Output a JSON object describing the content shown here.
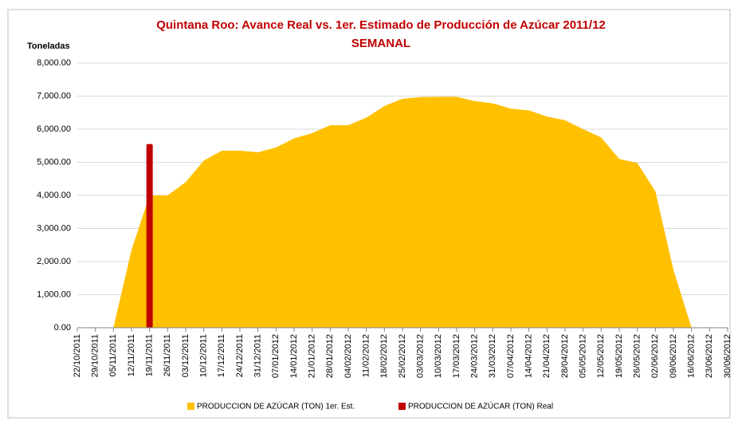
{
  "chart_data": {
    "type": "area-bar",
    "title": "Quintana Roo: Avance Real vs. 1er. Estimado de Producción de Azúcar 2011/12",
    "subtitle": "SEMANAL",
    "y_label": "Toneladas",
    "categories": [
      "22/10/2011",
      "29/10/2011",
      "05/11/2011",
      "12/11/2011",
      "19/11/2011",
      "26/11/2011",
      "03/12/2011",
      "10/12/2011",
      "17/12/2011",
      "24/12/2011",
      "31/12/2011",
      "07/01/2012",
      "14/01/2012",
      "21/01/2012",
      "28/01/2012",
      "04/02/2012",
      "11/02/2012",
      "18/02/2012",
      "25/02/2012",
      "03/03/2012",
      "10/03/2012",
      "17/03/2012",
      "24/03/2012",
      "31/03/2012",
      "07/04/2012",
      "14/04/2012",
      "21/04/2012",
      "28/04/2012",
      "05/05/2012",
      "12/05/2012",
      "19/05/2012",
      "26/05/2012",
      "02/06/2012",
      "09/06/2012",
      "16/06/2012",
      "23/06/2012",
      "30/06/2012"
    ],
    "series": [
      {
        "name": "PRODUCCION DE AZÚCAR (TON) 1er. Est.",
        "color": "#ffc000",
        "kind": "area",
        "values": [
          null,
          null,
          0,
          2350,
          4000,
          4000,
          4400,
          5050,
          5350,
          5350,
          5300,
          5450,
          5720,
          5880,
          6120,
          6120,
          6350,
          6700,
          6920,
          6970,
          6980,
          6980,
          6850,
          6780,
          6620,
          6570,
          6380,
          6270,
          6000,
          5750,
          5100,
          4980,
          4120,
          1750,
          0,
          null,
          null
        ]
      },
      {
        "name": "PRODUCCION DE AZÚCAR (TON) Real",
        "color": "#c00000",
        "kind": "bar",
        "values": [
          null,
          null,
          null,
          null,
          5550,
          null,
          null,
          null,
          null,
          null,
          null,
          null,
          null,
          null,
          null,
          null,
          null,
          null,
          null,
          null,
          null,
          null,
          null,
          null,
          null,
          null,
          null,
          null,
          null,
          null,
          null,
          null,
          null,
          null,
          null,
          null,
          null
        ]
      }
    ],
    "ylim": [
      0,
      8000
    ],
    "yticks": [
      {
        "value": 0,
        "label": "0.00"
      },
      {
        "value": 1000,
        "label": "1,000.00"
      },
      {
        "value": 2000,
        "label": "2,000.00"
      },
      {
        "value": 3000,
        "label": "3,000.00"
      },
      {
        "value": 4000,
        "label": "4,000.00"
      },
      {
        "value": 5000,
        "label": "5,000.00"
      },
      {
        "value": 6000,
        "label": "6,000.00"
      },
      {
        "value": 7000,
        "label": "7,000.00"
      },
      {
        "value": 8000,
        "label": "8,000.00"
      }
    ],
    "grid": true
  }
}
